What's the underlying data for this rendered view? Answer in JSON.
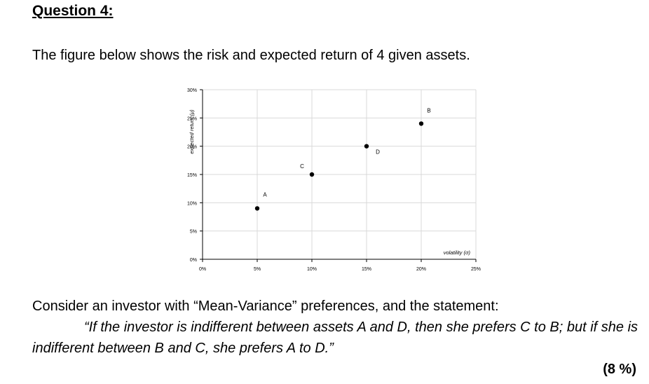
{
  "question": {
    "title": "Question 4:",
    "intro": "The figure below shows the risk and expected return of 4 given assets.",
    "consider": "Consider an investor with “Mean-Variance” preferences, and the statement:",
    "quote": "“If the investor is indifferent between assets A and D, then she prefers C to B; but if she is indifferent between B and C, she prefers A to D.”",
    "marks": "(8 %)"
  },
  "chart_data": {
    "type": "scatter",
    "xlabel": "volatility (σ)",
    "ylabel": "expected return (μ)",
    "xlim": [
      0,
      25
    ],
    "ylim": [
      0,
      30
    ],
    "x_ticks": [
      "0%",
      "5%",
      "10%",
      "15%",
      "20%",
      "25%"
    ],
    "y_ticks": [
      "0%",
      "5%",
      "10%",
      "15%",
      "20%",
      "25%",
      "30%"
    ],
    "grid": true,
    "points": [
      {
        "label": "A",
        "x": 5,
        "y": 9
      },
      {
        "label": "C",
        "x": 10,
        "y": 15
      },
      {
        "label": "D",
        "x": 15,
        "y": 20
      },
      {
        "label": "B",
        "x": 20,
        "y": 24
      }
    ]
  }
}
